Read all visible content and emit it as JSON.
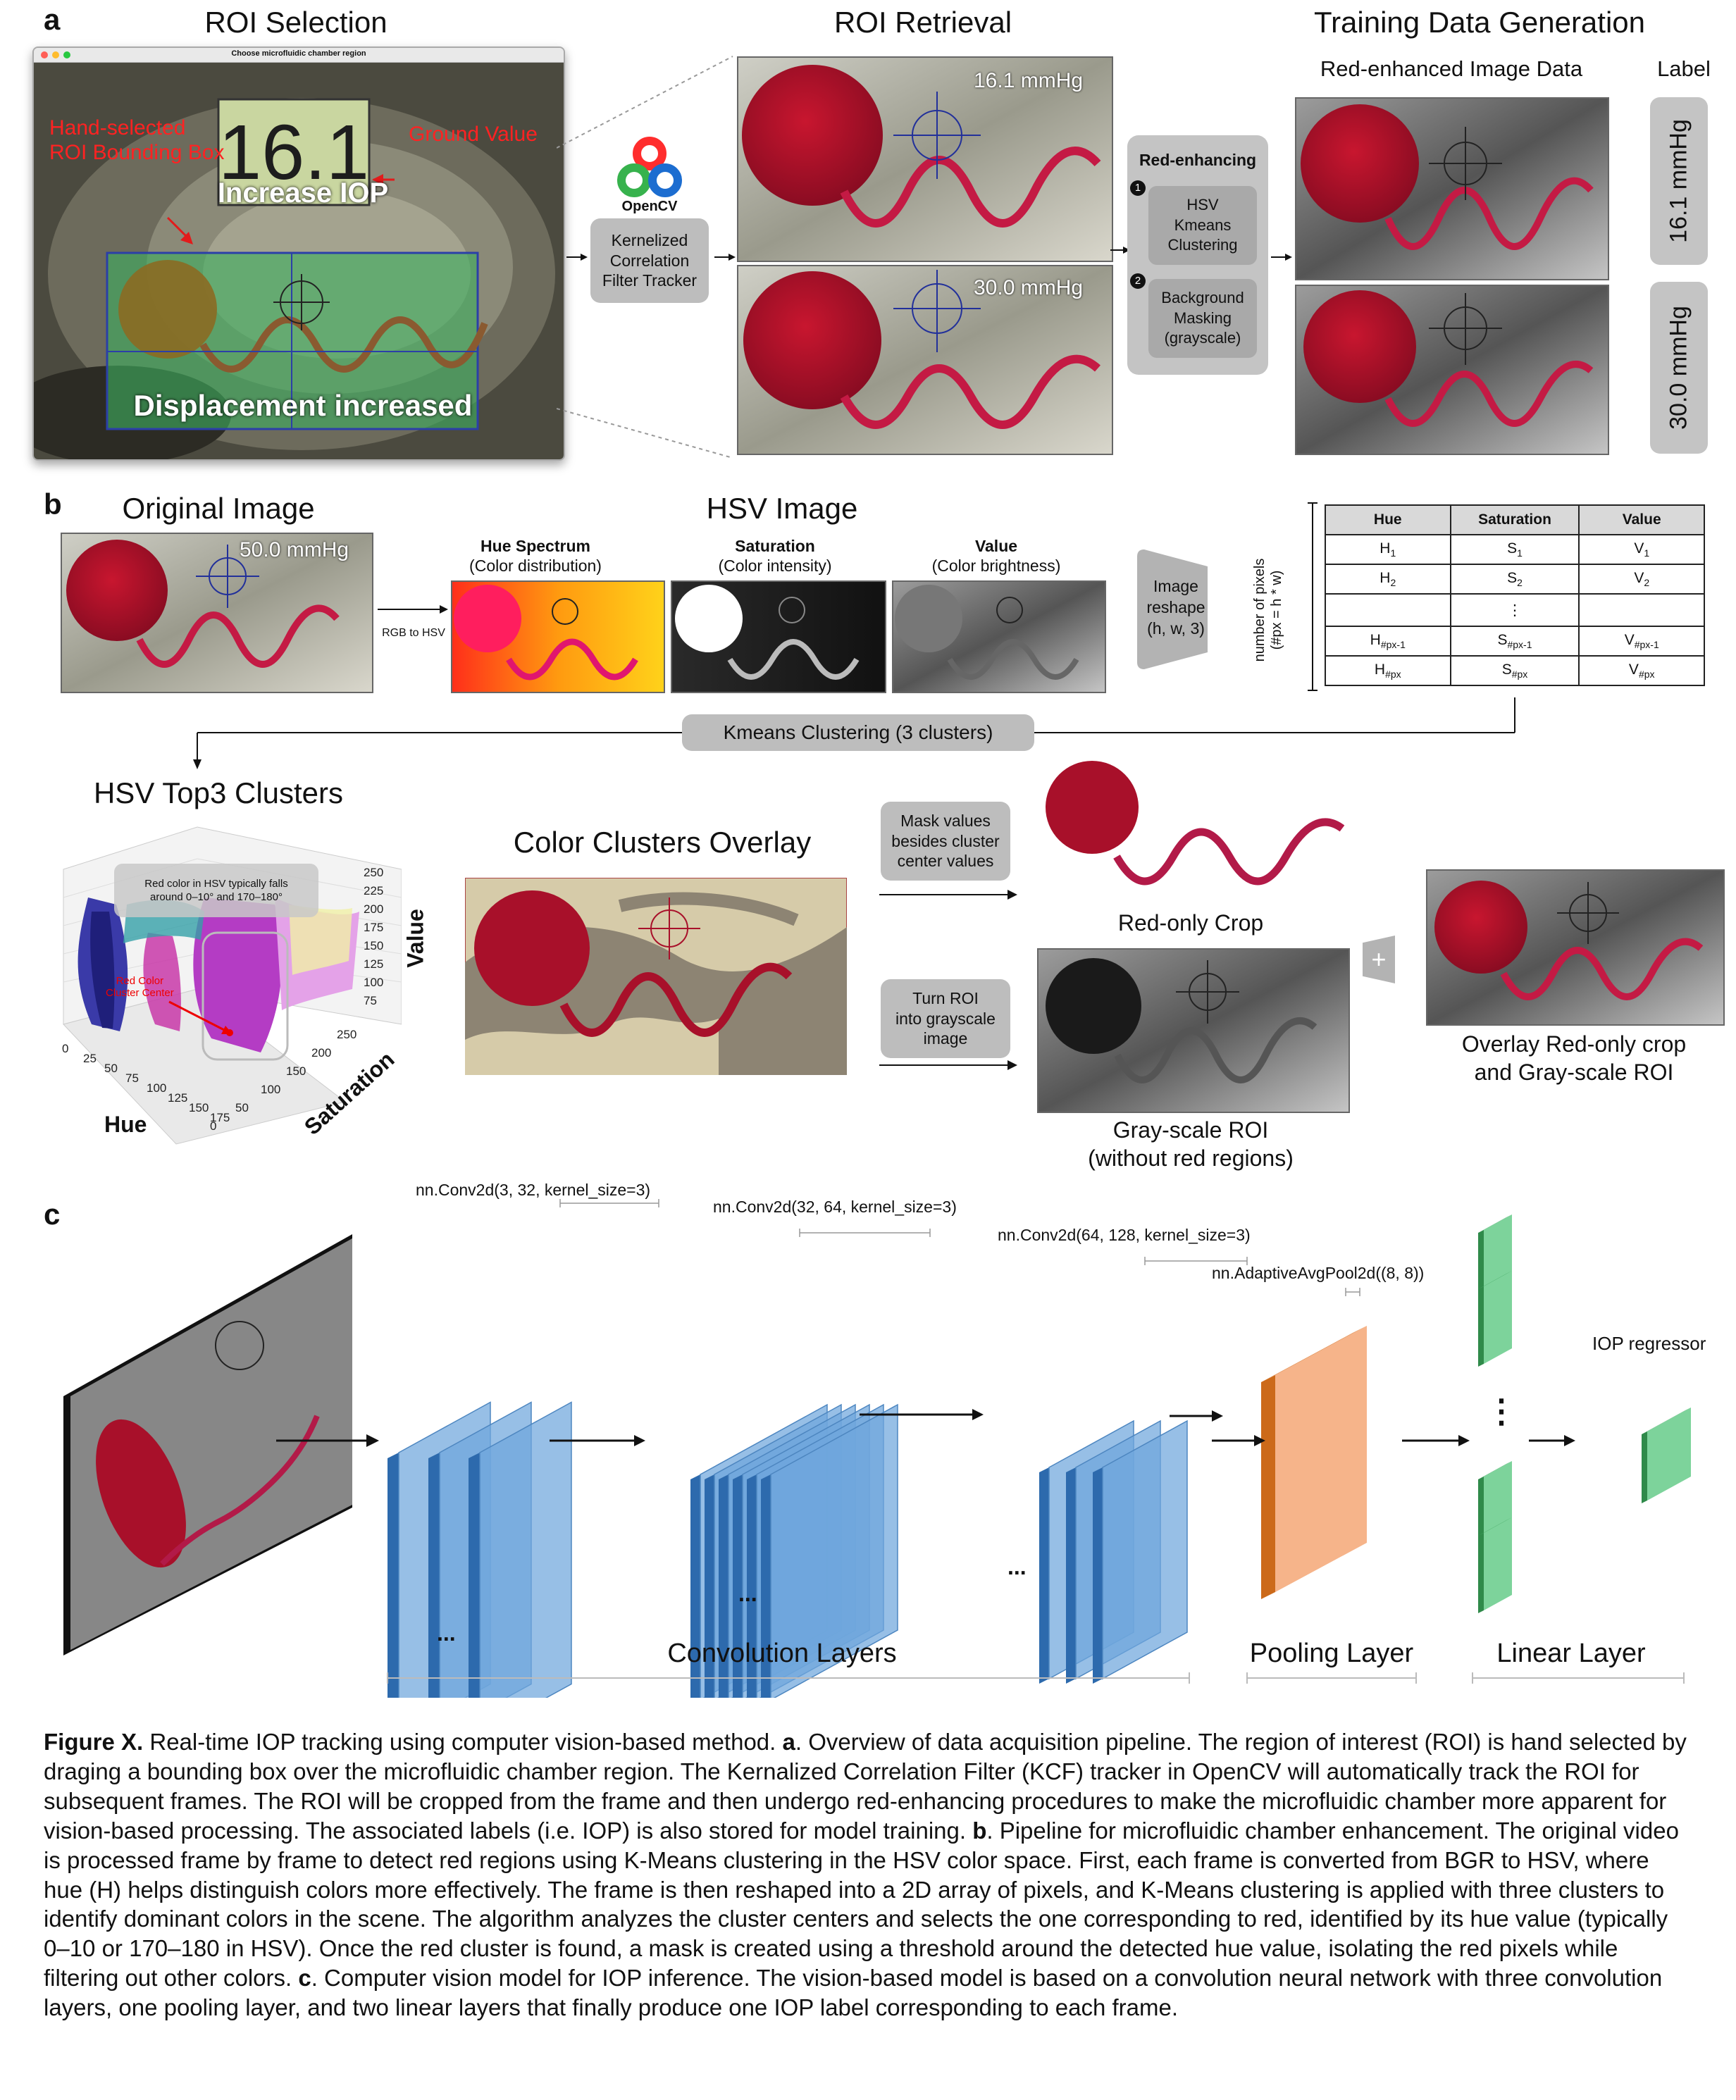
{
  "colors": {
    "red_roi": "#a8102a",
    "tracker_blue": "#1f2f9e",
    "bubble_gray": "#bdbdbd",
    "conv_blue": "#6fa6dc",
    "pool_orange": "#f6b48a",
    "linear_green": "#7dd39b",
    "cluster_beige": "#d6cba9"
  },
  "panel_a": {
    "letter": "a",
    "roi_selection": {
      "title": "ROI Selection",
      "window_title": "Choose microfluidic chamber region",
      "display_value": "16.1",
      "ground_value_label": "Ground Value",
      "hand_selected_label": "Hand-selected\nROI Bounding Box",
      "increase_iop": "Increase IOP",
      "displacement": "Displacement increased"
    },
    "opencv_label": "OpenCV",
    "tracker_box": "Kernelized\nCorrelation\nFilter Tracker",
    "roi_retrieval": {
      "title": "ROI Retrieval",
      "frame1_value": "16.1 mmHg",
      "frame2_value": "30.0 mmHg"
    },
    "red_enhancing": {
      "title": "Red-enhancing",
      "step1_num": "1",
      "step1": "HSV\nKmeans\nClustering",
      "step2_num": "2",
      "step2": "Background\nMasking\n(grayscale)"
    },
    "training": {
      "title": "Training Data Generation",
      "image_header": "Red-enhanced Image Data",
      "label_header": "Label",
      "labels": [
        "16.1 mmHg",
        "30.0 mmHg"
      ]
    }
  },
  "panel_b": {
    "letter": "b",
    "original_title": "Original Image",
    "original_value": "50.0 mmHg",
    "rgb_to_hsv": "RGB to HSV",
    "hsv_title": "HSV Image",
    "channels": [
      {
        "name": "Hue Spectrum",
        "desc": "(Color distribution)"
      },
      {
        "name": "Saturation",
        "desc": "(Color intensity)"
      },
      {
        "name": "Value",
        "desc": "(Color brightness)"
      }
    ],
    "reshape": "Image\nreshape\n(h, w, 3)",
    "pixels_axis": "number of pixels\n(#px = h * w)",
    "table": {
      "headers": [
        "Hue",
        "Saturation",
        "Value"
      ],
      "rows": [
        [
          [
            "H",
            "1"
          ],
          [
            "S",
            "1"
          ],
          [
            "V",
            "1"
          ]
        ],
        [
          [
            "H",
            "2"
          ],
          [
            "S",
            "2"
          ],
          [
            "V",
            "2"
          ]
        ],
        [
          [
            "",
            ""
          ],
          [
            "⋮",
            ""
          ],
          [
            "",
            ""
          ]
        ],
        [
          [
            "H",
            "#px-1"
          ],
          [
            "S",
            "#px-1"
          ],
          [
            "V",
            "#px-1"
          ]
        ],
        [
          [
            "H",
            "#px"
          ],
          [
            "S",
            "#px"
          ],
          [
            "V",
            "#px"
          ]
        ]
      ]
    },
    "kmeans_label": "Kmeans Clustering (3 clusters)",
    "clusters_title": "HSV Top3 Clusters",
    "clusters_note": "Red color in HSV typically falls\naround 0–10° and 170–180°",
    "cluster_center_label": "Red Color\nCluster Center",
    "axis_value": "Value",
    "axis_hue": "Hue",
    "axis_saturation": "Saturation",
    "value_ticks": [
      "250",
      "225",
      "200",
      "175",
      "150",
      "125",
      "100",
      "75"
    ],
    "hue_ticks": [
      "0",
      "25",
      "50",
      "75",
      "100",
      "125",
      "150",
      "175"
    ],
    "sat_ticks": [
      "250",
      "200",
      "150",
      "100",
      "50",
      "0"
    ],
    "overlay_title": "Color Clusters Overlay",
    "mask_box": "Mask values\nbesides cluster\ncenter values",
    "gray_box": "Turn ROI\ninto grayscale\nimage",
    "red_only_caption": "Red-only Crop",
    "gray_caption": "Gray-scale ROI\n(without red regions)",
    "plus_symbol": "+",
    "overlay_result_caption": "Overlay Red-only crop\nand Gray-scale ROI"
  },
  "panel_c": {
    "letter": "c",
    "conv1": "nn.Conv2d(3, 32, kernel_size=3)",
    "conv2": "nn.Conv2d(32, 64, kernel_size=3)",
    "conv3": "nn.Conv2d(64, 128, kernel_size=3)",
    "pool": "nn.AdaptiveAvgPool2d((8, 8))",
    "regressor": "IOP regressor",
    "ellipsis": "...",
    "vellipsis": "⋮",
    "conv_group": "Convolution Layers",
    "pool_group": "Pooling Layer",
    "linear_group": "Linear Layer"
  },
  "caption": {
    "fig_label": "Figure X.",
    "intro": " Real-time IOP tracking using computer vision-based method. ",
    "a": "a",
    "a_text": ". Overview of data acquisition pipeline. The region of interest (ROI) is hand selected by draging a bounding box over the microfluidic chamber region. The Kernalized Correlation Filter (KCF) tracker in OpenCV will automatically track the ROI for subsequent frames. The ROI will be cropped from the frame and then undergo red-enhancing procedures to make the microfluidic chamber more apparent for vision-based processing. The associated labels (i.e. IOP) is also stored for model training. ",
    "b": "b",
    "b_text": ". Pipeline for microfluidic chamber enhancement. The original video is processed frame by frame to detect red regions using K-Means clustering in the HSV color space. First, each frame is converted from BGR to HSV, where hue (H) helps distinguish colors more effectively. The frame is then reshaped into a 2D array of pixels, and K-Means clustering is applied with three clusters to identify dominant colors in the scene. The algorithm analyzes the cluster centers and selects the one corresponding to red, identified by its hue value (typically 0–10 or 170–180 in HSV). Once the red cluster is found, a mask is created using a threshold around the detected hue value, isolating the red pixels while filtering out other colors. ",
    "c": "c",
    "c_text": ". Computer vision model for IOP inference. The vision-based model is based on a convolution neural network with three convolution layers, one pooling layer, and two linear layers that finally produce one IOP label corresponding to each frame."
  }
}
